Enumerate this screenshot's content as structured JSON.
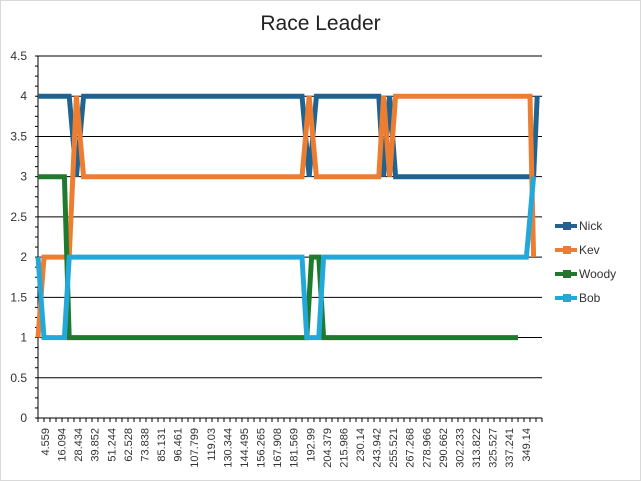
{
  "chart_data": {
    "type": "line",
    "title": "Race Leader",
    "xlabel": "",
    "ylabel": "",
    "ylim": [
      0,
      4.5
    ],
    "yticks": [
      "0",
      "0.5",
      "1",
      "1.5",
      "2",
      "2.5",
      "3",
      "3.5",
      "4",
      "4.5"
    ],
    "x_tick_labels": [
      "4.559",
      "16.094",
      "28.434",
      "39.852",
      "51.244",
      "62.528",
      "73.838",
      "85.131",
      "96.461",
      "107.799",
      "119.03",
      "130.344",
      "144.495",
      "156.265",
      "167.908",
      "181.569",
      "192.99",
      "204.379",
      "215.986",
      "230.14",
      "243.942",
      "255.521",
      "267.268",
      "278.966",
      "290.662",
      "302.233",
      "313.822",
      "325.527",
      "337.241",
      "349.14"
    ],
    "grid": "horizontal",
    "legend_position": "right",
    "series": [
      {
        "name": "Nick",
        "color": "#1f6391",
        "points": [
          [
            0,
            4
          ],
          [
            2.6,
            4
          ],
          [
            3.2,
            3
          ],
          [
            3.8,
            4
          ],
          [
            22,
            4
          ],
          [
            22.6,
            3
          ],
          [
            23.2,
            4
          ],
          [
            28.4,
            4
          ],
          [
            28.8,
            3
          ],
          [
            29.3,
            4
          ],
          [
            29.8,
            3
          ],
          [
            40,
            3
          ],
          [
            41.3,
            3
          ],
          [
            41.6,
            4
          ]
        ]
      },
      {
        "name": "Kev",
        "color": "#ed7d31",
        "points": [
          [
            0,
            1
          ],
          [
            0.5,
            2
          ],
          [
            2.6,
            2
          ],
          [
            3.2,
            4
          ],
          [
            3.8,
            3
          ],
          [
            22,
            3
          ],
          [
            22.6,
            4
          ],
          [
            23.2,
            3
          ],
          [
            28.4,
            3
          ],
          [
            28.8,
            4
          ],
          [
            29.3,
            3
          ],
          [
            29.8,
            4
          ],
          [
            41,
            4
          ],
          [
            41.3,
            2
          ]
        ]
      },
      {
        "name": "Woody",
        "color": "#1e7b2e",
        "points": [
          [
            0,
            3
          ],
          [
            2.2,
            3
          ],
          [
            2.6,
            1
          ],
          [
            22.4,
            1
          ],
          [
            22.8,
            2
          ],
          [
            23.4,
            2
          ],
          [
            23.8,
            1
          ],
          [
            40,
            1
          ]
        ]
      },
      {
        "name": "Bob",
        "color": "#23a8db",
        "points": [
          [
            0,
            2
          ],
          [
            0.5,
            1
          ],
          [
            2.2,
            1
          ],
          [
            2.6,
            2
          ],
          [
            22,
            2
          ],
          [
            22.4,
            1
          ],
          [
            23.4,
            1
          ],
          [
            23.8,
            2
          ],
          [
            40.7,
            2
          ],
          [
            41.3,
            3
          ]
        ]
      }
    ]
  }
}
